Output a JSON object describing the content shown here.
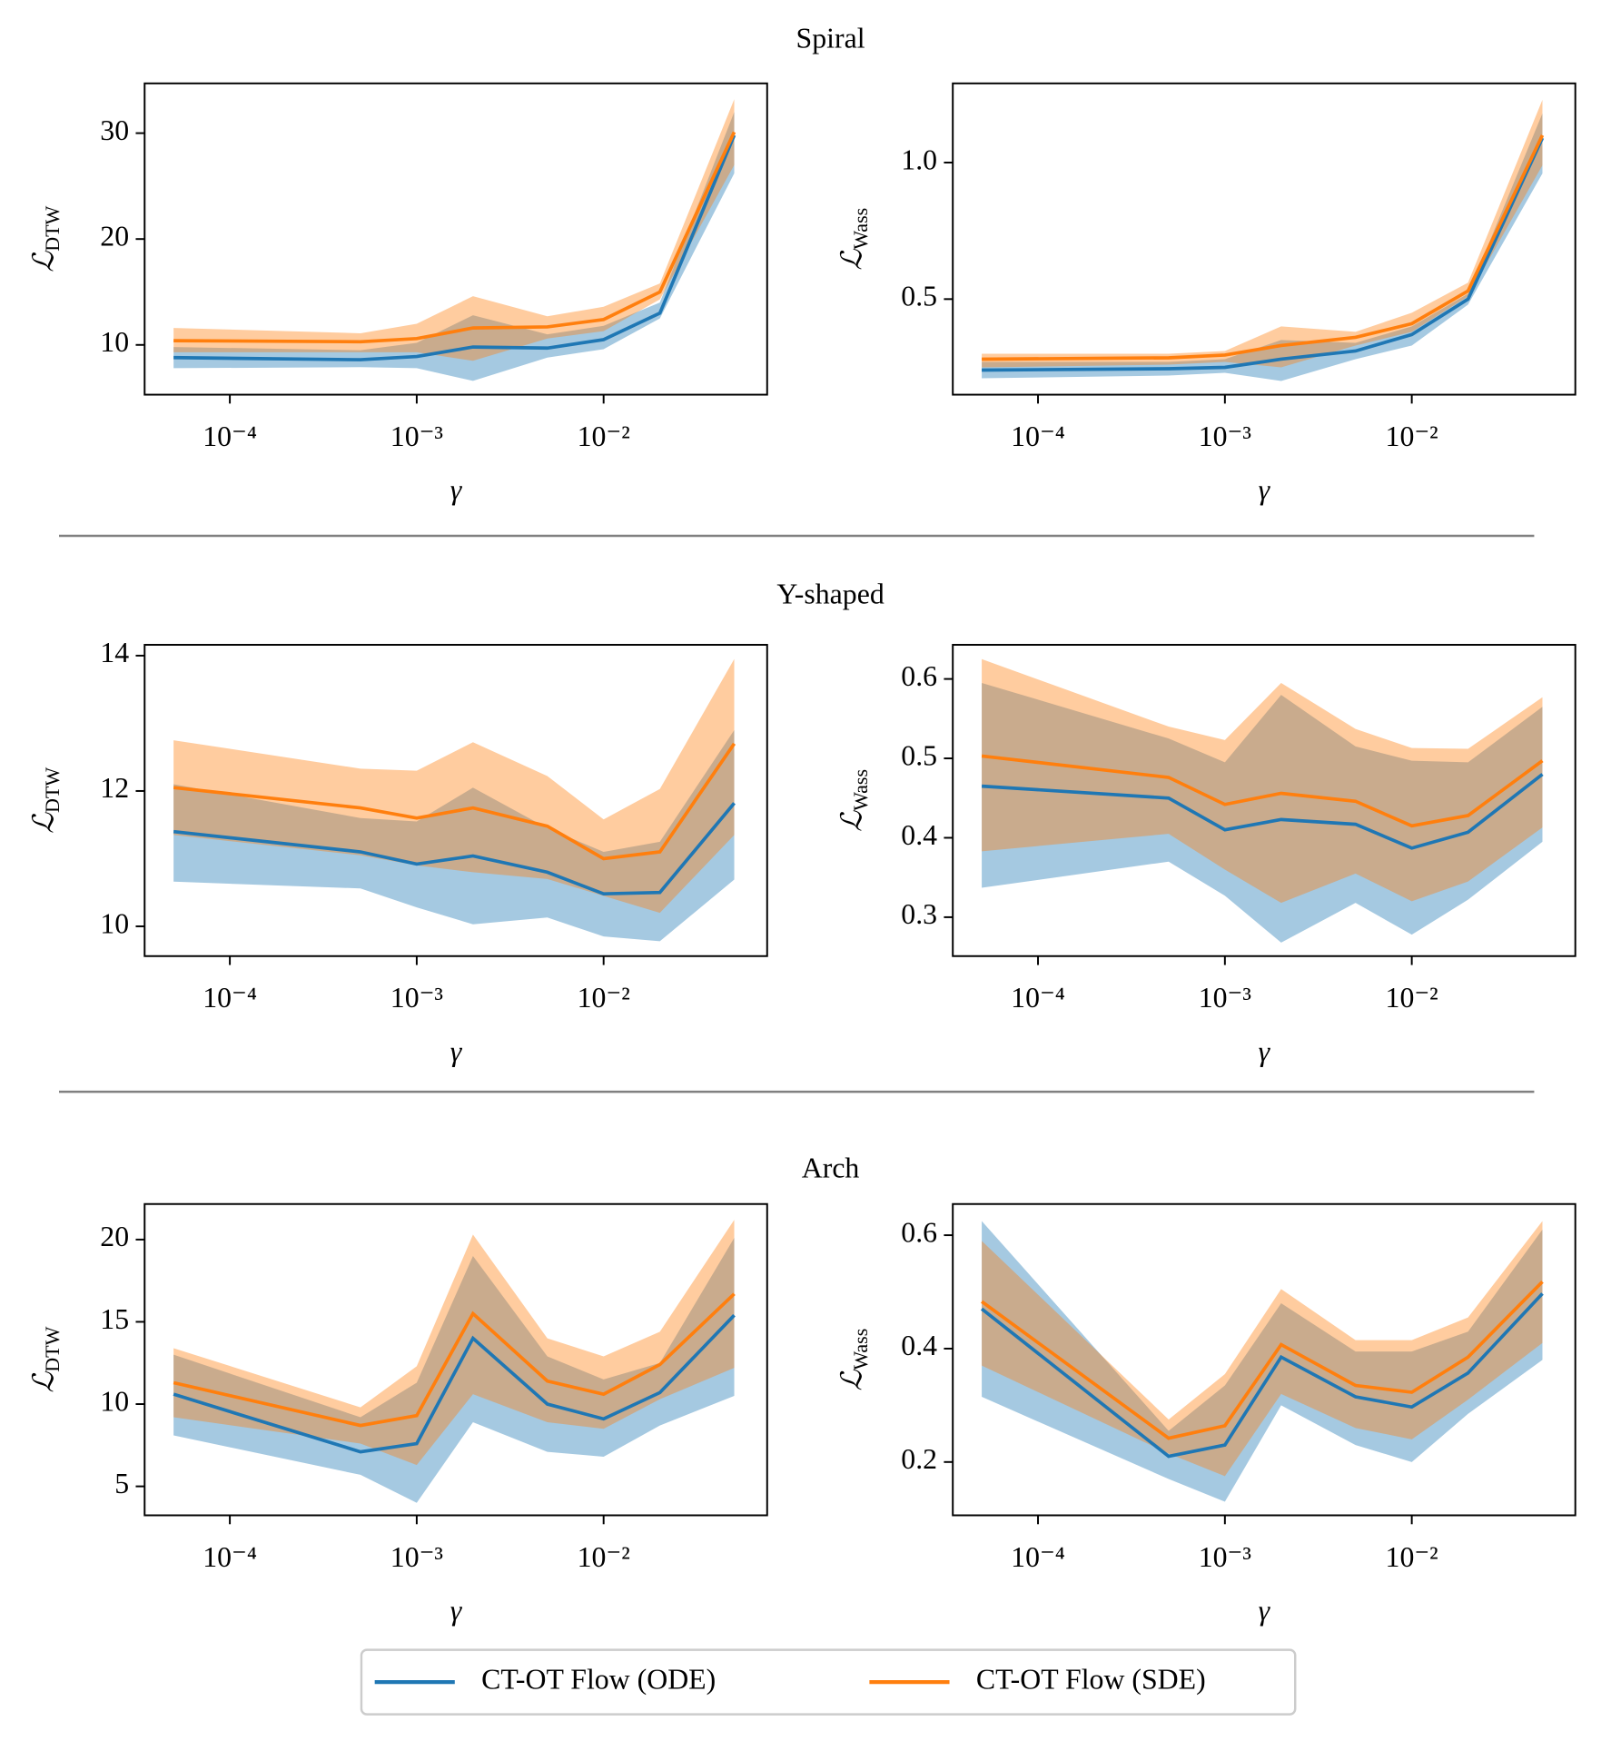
{
  "row_titles": [
    "Spiral",
    "Y-shaped",
    "Arch"
  ],
  "chart_data": [
    {
      "type": "line",
      "xscale": "log",
      "x": [
        5e-05,
        0.0005,
        0.001,
        0.002,
        0.005,
        0.01,
        0.02,
        0.05
      ],
      "xlim": [
        3.5e-05,
        0.075
      ],
      "xticks": [
        {
          "value": 0.0001,
          "label": "10⁻⁴"
        },
        {
          "value": 0.001,
          "label": "10⁻³"
        },
        {
          "value": 0.01,
          "label": "10⁻²"
        }
      ],
      "xlabel": "γ",
      "ylabel": {
        "symbol": "ℒ",
        "subscript": "DTW"
      },
      "ylim": [
        5.3,
        34.7
      ],
      "yticks": [
        10,
        20,
        30
      ],
      "series": [
        {
          "name": "CT-OT Flow (ODE)",
          "color": "#1f77b4",
          "values": [
            8.8,
            8.6,
            8.9,
            9.8,
            9.7,
            10.5,
            13.0,
            29.8
          ],
          "lower": [
            7.8,
            7.9,
            7.8,
            6.6,
            8.8,
            9.6,
            12.5,
            26.2
          ],
          "upper": [
            9.8,
            9.5,
            10.2,
            12.8,
            11.0,
            11.8,
            14.0,
            32.0
          ]
        },
        {
          "name": "CT-OT Flow (SDE)",
          "color": "#ff7f0e",
          "values": [
            10.4,
            10.3,
            10.6,
            11.6,
            11.7,
            12.4,
            15.0,
            30.1
          ],
          "lower": [
            9.3,
            9.3,
            9.3,
            8.5,
            10.6,
            11.3,
            14.3,
            27.0
          ],
          "upper": [
            11.6,
            11.1,
            12.0,
            14.6,
            12.7,
            13.6,
            15.8,
            33.2
          ]
        }
      ]
    },
    {
      "type": "line",
      "xscale": "log",
      "x": [
        5e-05,
        0.0005,
        0.001,
        0.002,
        0.005,
        0.01,
        0.02,
        0.05
      ],
      "xlim": [
        3.5e-05,
        0.075
      ],
      "xticks": [
        {
          "value": 0.0001,
          "label": "10⁻⁴"
        },
        {
          "value": 0.001,
          "label": "10⁻³"
        },
        {
          "value": 0.01,
          "label": "10⁻²"
        }
      ],
      "xlabel": "γ",
      "ylabel": {
        "symbol": "ℒ",
        "subscript": "Wass"
      },
      "ylim": [
        0.15,
        1.29
      ],
      "yticks": [
        0.5,
        {
          "value": 1,
          "label": "1.0"
        }
      ],
      "series": [
        {
          "color": "#1f77b4",
          "values": [
            0.24,
            0.245,
            0.25,
            0.28,
            0.31,
            0.37,
            0.5,
            1.09
          ],
          "lower": [
            0.21,
            0.22,
            0.23,
            0.2,
            0.28,
            0.33,
            0.48,
            0.96
          ],
          "upper": [
            0.27,
            0.27,
            0.28,
            0.35,
            0.34,
            0.4,
            0.52,
            1.18
          ]
        },
        {
          "color": "#ff7f0e",
          "values": [
            0.28,
            0.285,
            0.295,
            0.33,
            0.36,
            0.41,
            0.53,
            1.1
          ],
          "lower": [
            0.25,
            0.26,
            0.27,
            0.25,
            0.33,
            0.38,
            0.51,
            0.99
          ],
          "upper": [
            0.3,
            0.3,
            0.31,
            0.4,
            0.38,
            0.45,
            0.56,
            1.23
          ]
        }
      ]
    },
    {
      "type": "line",
      "xscale": "log",
      "x": [
        5e-05,
        0.0005,
        0.001,
        0.002,
        0.005,
        0.01,
        0.02,
        0.05
      ],
      "xlim": [
        3.5e-05,
        0.075
      ],
      "xticks": [
        {
          "value": 0.0001,
          "label": "10⁻⁴"
        },
        {
          "value": 0.001,
          "label": "10⁻³"
        },
        {
          "value": 0.01,
          "label": "10⁻²"
        }
      ],
      "xlabel": "γ",
      "ylabel": {
        "symbol": "ℒ",
        "subscript": "DTW"
      },
      "ylim": [
        9.56,
        14.16
      ],
      "yticks": [
        10,
        12,
        14
      ],
      "series": [
        {
          "color": "#1f77b4",
          "values": [
            11.4,
            11.1,
            10.92,
            11.04,
            10.8,
            10.48,
            10.5,
            11.82
          ],
          "lower": [
            10.66,
            10.56,
            10.28,
            10.03,
            10.13,
            9.85,
            9.78,
            10.69
          ],
          "upper": [
            12.1,
            11.6,
            11.55,
            12.05,
            11.45,
            11.1,
            11.25,
            12.9
          ]
        },
        {
          "color": "#ff7f0e",
          "values": [
            12.05,
            11.75,
            11.6,
            11.75,
            11.48,
            11.0,
            11.1,
            12.7
          ],
          "lower": [
            11.35,
            11.05,
            10.9,
            10.8,
            10.7,
            10.45,
            10.2,
            11.35
          ],
          "upper": [
            12.75,
            12.33,
            12.3,
            12.72,
            12.22,
            11.58,
            12.03,
            13.95
          ]
        }
      ]
    },
    {
      "type": "line",
      "xscale": "log",
      "x": [
        5e-05,
        0.0005,
        0.001,
        0.002,
        0.005,
        0.01,
        0.02,
        0.05
      ],
      "xlim": [
        3.5e-05,
        0.075
      ],
      "xticks": [
        {
          "value": 0.0001,
          "label": "10⁻⁴"
        },
        {
          "value": 0.001,
          "label": "10⁻³"
        },
        {
          "value": 0.01,
          "label": "10⁻²"
        }
      ],
      "xlabel": "γ",
      "ylabel": {
        "symbol": "ℒ",
        "subscript": "Wass"
      },
      "ylim": [
        0.251,
        0.643
      ],
      "yticks": [
        0.3,
        0.4,
        0.5,
        0.6
      ],
      "series": [
        {
          "color": "#1f77b4",
          "values": [
            0.465,
            0.45,
            0.41,
            0.423,
            0.417,
            0.387,
            0.407,
            0.48
          ],
          "lower": [
            0.337,
            0.37,
            0.327,
            0.268,
            0.318,
            0.278,
            0.322,
            0.395
          ],
          "upper": [
            0.595,
            0.525,
            0.495,
            0.58,
            0.515,
            0.497,
            0.495,
            0.565
          ]
        },
        {
          "color": "#ff7f0e",
          "values": [
            0.503,
            0.476,
            0.442,
            0.456,
            0.446,
            0.415,
            0.428,
            0.497
          ],
          "lower": [
            0.383,
            0.405,
            0.36,
            0.318,
            0.355,
            0.32,
            0.345,
            0.413
          ],
          "upper": [
            0.625,
            0.54,
            0.523,
            0.595,
            0.537,
            0.513,
            0.512,
            0.577
          ]
        }
      ]
    },
    {
      "type": "line",
      "xscale": "log",
      "x": [
        5e-05,
        0.0005,
        0.001,
        0.002,
        0.005,
        0.01,
        0.02,
        0.05
      ],
      "xlim": [
        3.5e-05,
        0.075
      ],
      "xticks": [
        {
          "value": 0.0001,
          "label": "10⁻⁴"
        },
        {
          "value": 0.001,
          "label": "10⁻³"
        },
        {
          "value": 0.01,
          "label": "10⁻²"
        }
      ],
      "xlabel": "γ",
      "ylabel": {
        "symbol": "ℒ",
        "subscript": "DTW"
      },
      "ylim": [
        3.24,
        22.16
      ],
      "yticks": [
        5,
        10,
        15,
        20
      ],
      "series": [
        {
          "color": "#1f77b4",
          "values": [
            10.6,
            7.1,
            7.6,
            14.0,
            10.0,
            9.1,
            10.7,
            15.4
          ],
          "lower": [
            8.1,
            5.7,
            4.0,
            8.9,
            7.1,
            6.8,
            8.7,
            10.5
          ],
          "upper": [
            13.0,
            9.2,
            11.3,
            19.0,
            12.9,
            11.5,
            12.5,
            20.1
          ]
        },
        {
          "color": "#ff7f0e",
          "values": [
            11.3,
            8.7,
            9.3,
            15.5,
            11.4,
            10.6,
            12.4,
            16.7
          ],
          "lower": [
            9.2,
            7.6,
            6.3,
            10.6,
            8.9,
            8.5,
            10.3,
            12.2
          ],
          "upper": [
            13.4,
            9.8,
            12.3,
            20.3,
            14.0,
            12.9,
            14.4,
            21.2
          ]
        }
      ]
    },
    {
      "type": "line",
      "xscale": "log",
      "x": [
        5e-05,
        0.0005,
        0.001,
        0.002,
        0.005,
        0.01,
        0.02,
        0.05
      ],
      "xlim": [
        3.5e-05,
        0.075
      ],
      "xticks": [
        {
          "value": 0.0001,
          "label": "10⁻⁴"
        },
        {
          "value": 0.001,
          "label": "10⁻³"
        },
        {
          "value": 0.01,
          "label": "10⁻²"
        }
      ],
      "xlabel": "γ",
      "ylabel": {
        "symbol": "ℒ",
        "subscript": "Wass"
      },
      "ylim": [
        0.106,
        0.655
      ],
      "yticks": [
        0.2,
        0.4,
        0.6
      ],
      "series": [
        {
          "color": "#1f77b4",
          "values": [
            0.47,
            0.21,
            0.23,
            0.385,
            0.315,
            0.297,
            0.357,
            0.497
          ],
          "lower": [
            0.315,
            0.17,
            0.13,
            0.3,
            0.23,
            0.2,
            0.285,
            0.38
          ],
          "upper": [
            0.625,
            0.255,
            0.335,
            0.48,
            0.395,
            0.395,
            0.43,
            0.61
          ]
        },
        {
          "color": "#ff7f0e",
          "values": [
            0.483,
            0.242,
            0.264,
            0.407,
            0.335,
            0.323,
            0.385,
            0.518
          ],
          "lower": [
            0.37,
            0.215,
            0.175,
            0.32,
            0.26,
            0.24,
            0.31,
            0.41
          ],
          "upper": [
            0.59,
            0.275,
            0.355,
            0.505,
            0.415,
            0.415,
            0.455,
            0.625
          ]
        }
      ]
    }
  ]
}
